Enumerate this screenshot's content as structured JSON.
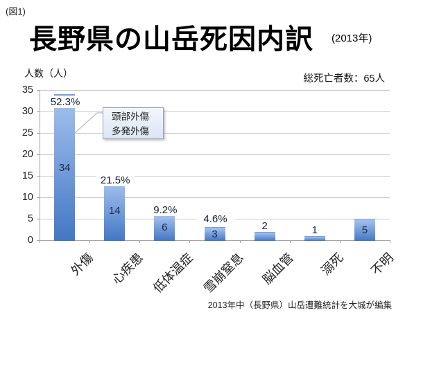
{
  "figure_label": "(図1)",
  "header": {
    "title": "長野県の山岳死因内訳",
    "year_note": "(2013年)"
  },
  "y_axis_title": "人数（人）",
  "total_note": "総死亡者数：65人",
  "callout": {
    "line1": "頭部外傷",
    "line2": "多発外傷"
  },
  "footer_note": "2013年中（長野県）山岳遭難統計を大城が編集",
  "colors": {
    "bar_gradient_top": "#a6c3ee",
    "bar_gradient_bottom": "#4377c4",
    "gridline": "#c9c9c9",
    "axis": "#a3a3a3",
    "value_label_text": "#1b2a4a",
    "callout_border": "#98a0ae",
    "callout_bg_top": "#f3f7fc",
    "callout_bg_bottom": "#dce5f2"
  },
  "chart_data": {
    "type": "bar",
    "title": "長野県の山岳死因内訳（2013年）",
    "categories": [
      "外傷",
      "心疾患",
      "低体温症",
      "雪崩窒息",
      "脳血管",
      "溺死",
      "不明"
    ],
    "values": [
      34,
      14,
      6,
      3,
      2,
      1,
      5
    ],
    "percent_labels": [
      "52.3%",
      "21.5%",
      "9.2%",
      "4.6%",
      null,
      null,
      null
    ],
    "total_deaths": 65,
    "xlabel": "",
    "ylabel": "人数（人）",
    "ylim": [
      0,
      35
    ],
    "ytick_interval": 5,
    "grid": true,
    "legend": false,
    "annotation": {
      "target_category": "外傷",
      "lines": [
        "頭部外傷",
        "多発外傷"
      ]
    }
  }
}
